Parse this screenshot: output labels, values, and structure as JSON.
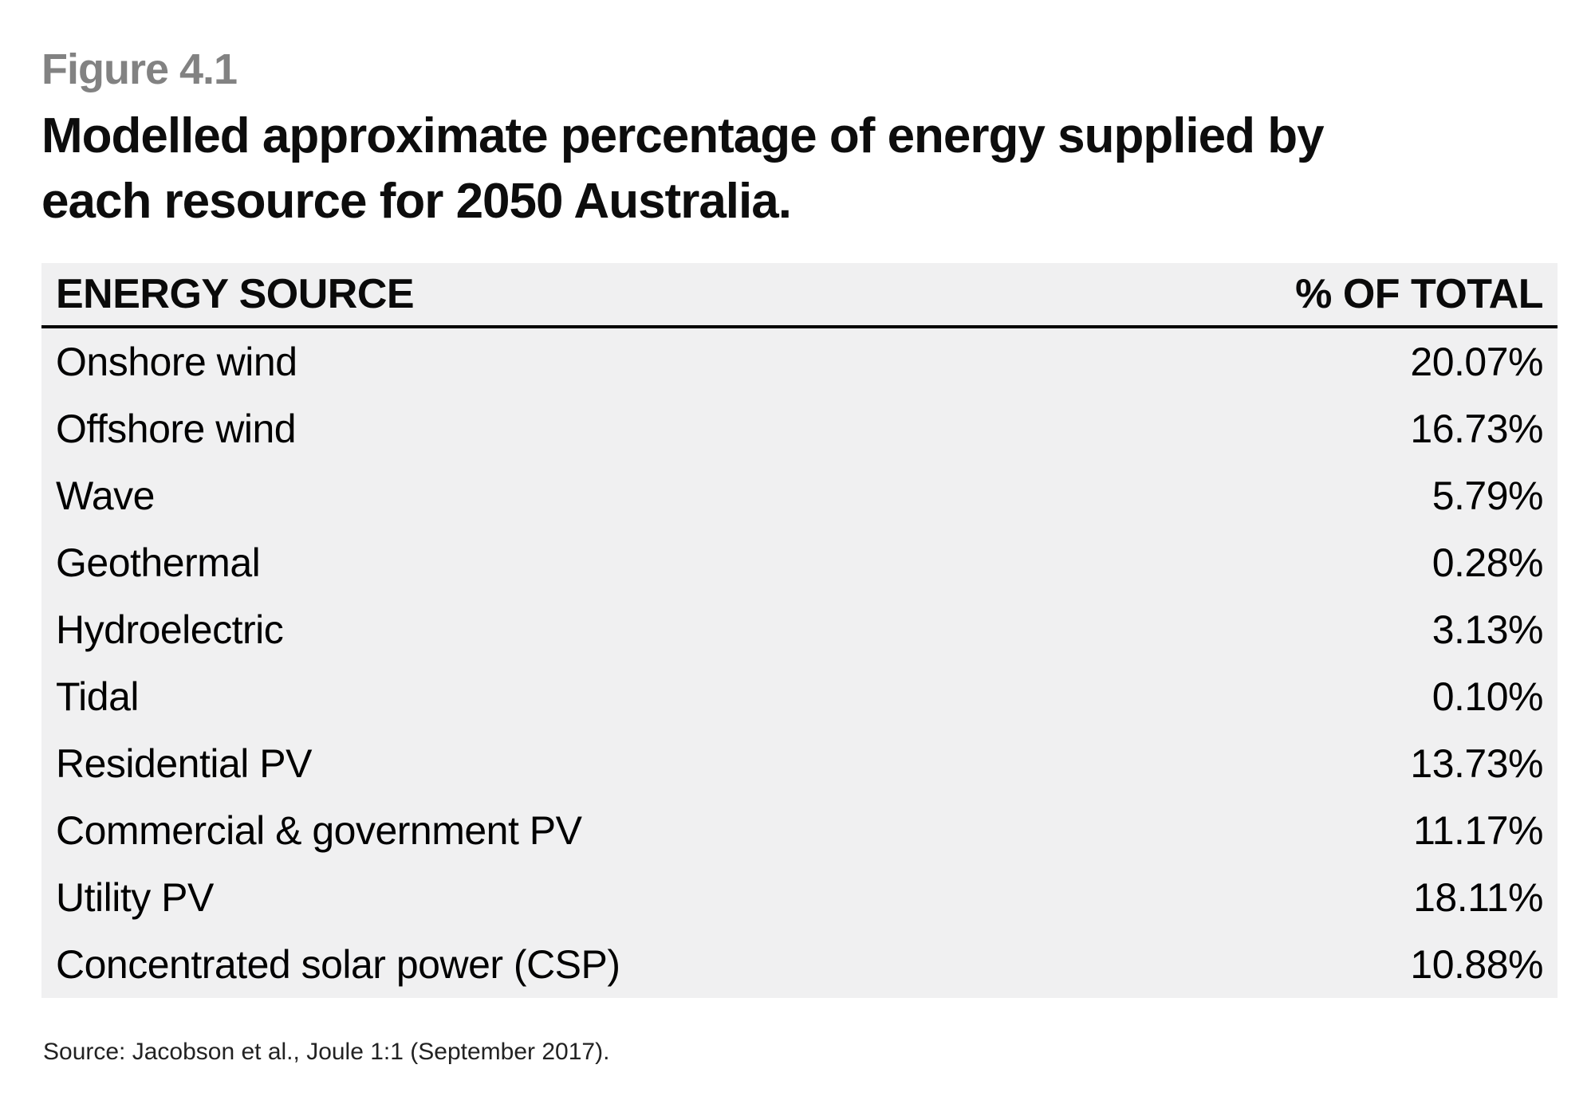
{
  "figure_label": "Figure 4.1",
  "title_lines": [
    "Modelled approximate percentage of energy supplied by",
    "each resource for 2050 Australia."
  ],
  "table": {
    "headers": {
      "source": "ENERGY SOURCE",
      "value": "% OF TOTAL"
    },
    "rows": [
      {
        "source": "Onshore wind",
        "value": "20.07%"
      },
      {
        "source": "Offshore wind",
        "value": "16.73%"
      },
      {
        "source": "Wave",
        "value": "5.79%"
      },
      {
        "source": "Geothermal",
        "value": "0.28%"
      },
      {
        "source": "Hydroelectric",
        "value": "3.13%"
      },
      {
        "source": "Tidal",
        "value": "0.10%"
      },
      {
        "source": "Residential PV",
        "value": "13.73%"
      },
      {
        "source": "Commercial & government PV",
        "value": "11.17%"
      },
      {
        "source": "Utility PV",
        "value": "18.11%"
      },
      {
        "source": "Concentrated solar power (CSP)",
        "value": "10.88%"
      }
    ]
  },
  "source_note": "Source: Jacobson et al., Joule 1:1 (September 2017).",
  "colors": {
    "page_background": "#ffffff",
    "table_background": "#f0f0f1",
    "figure_label_gray": "#828282",
    "title_text": "#0d0d0d",
    "body_text": "#000000",
    "header_rule": "#000000"
  },
  "chart_data": {
    "type": "table",
    "title": "Modelled approximate percentage of energy supplied by each resource for 2050 Australia.",
    "figure_number": "Figure 4.1",
    "columns": [
      "ENERGY SOURCE",
      "% OF TOTAL"
    ],
    "categories": [
      "Onshore wind",
      "Offshore wind",
      "Wave",
      "Geothermal",
      "Hydroelectric",
      "Tidal",
      "Residential PV",
      "Commercial & government PV",
      "Utility PV",
      "Concentrated solar power (CSP)"
    ],
    "values": [
      20.07,
      16.73,
      5.79,
      0.28,
      3.13,
      0.1,
      13.73,
      11.17,
      18.11,
      10.88
    ],
    "unit": "%",
    "source": "Source: Jacobson et al., Joule 1:1 (September 2017)."
  }
}
